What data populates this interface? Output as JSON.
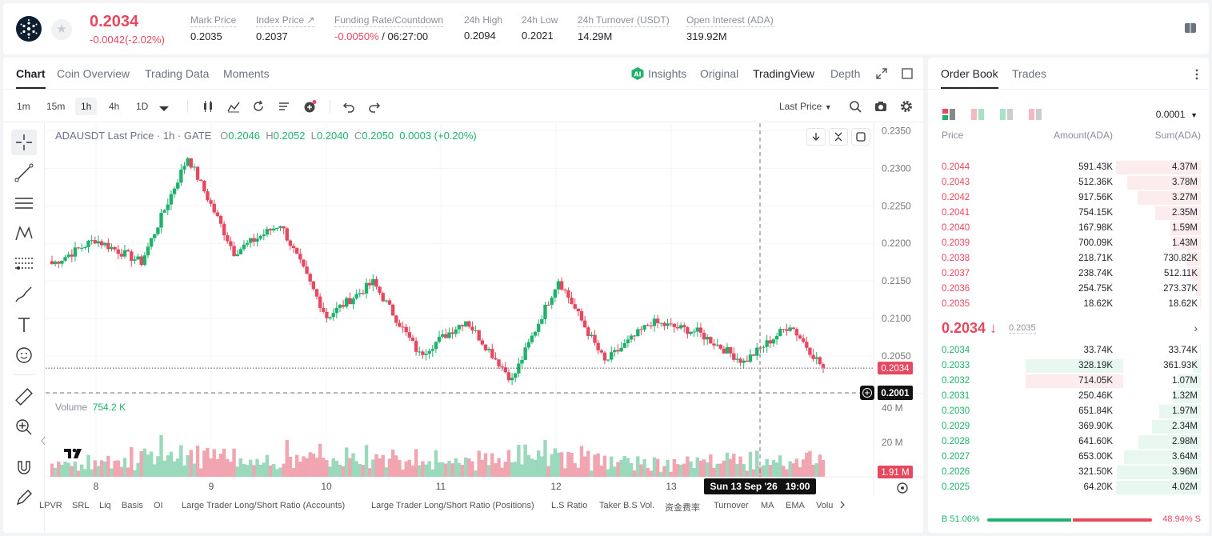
{
  "header": {
    "last_price": "0.2034",
    "price_change": "-0.0042(-2.02%)",
    "stats": [
      {
        "label": "Mark Price",
        "value": "0.2035"
      },
      {
        "label": "Index Price ↗",
        "value": "0.2037"
      },
      {
        "label": "Funding Rate/Countdown",
        "value_red": "-0.0050%",
        "value": " / 06:27:00"
      },
      {
        "label": "24h High",
        "value": "0.2094"
      },
      {
        "label": "24h Low",
        "value": "0.2021"
      },
      {
        "label": "24h Turnover (USDT)",
        "value": "14.29M"
      },
      {
        "label": "Open Interest (ADA)",
        "value": "319.92M"
      }
    ]
  },
  "chart_tabs": [
    "Chart",
    "Coin Overview",
    "Trading Data",
    "Moments"
  ],
  "view_tabs": {
    "insights": "Insights",
    "original": "Original",
    "tradingview": "TradingView",
    "depth": "Depth"
  },
  "timeframes": [
    "1m",
    "15m",
    "1h",
    "4h",
    "1D"
  ],
  "last_price_select": "Last Price",
  "legend": {
    "symbol": "ADAUSDT Last Price · 1h · GATE",
    "o": "0.2046",
    "h": "0.2052",
    "l": "0.2040",
    "c": "0.2050",
    "change": "0.0003 (+0.20%)"
  },
  "volume_legend": {
    "label": "Volume",
    "value": "754.2 K"
  },
  "price_axis": [
    "0.2350",
    "0.2300",
    "0.2250",
    "0.2200",
    "0.2150",
    "0.2100",
    "0.2050"
  ],
  "volume_axis": [
    "40 M",
    "20 M"
  ],
  "x_axis": [
    "8",
    "9",
    "10",
    "11",
    "12",
    "13"
  ],
  "price_tag": "0.2034",
  "cursor_tag": "0.2001",
  "volume_tag": "1.91 M",
  "cursor_time": "Sun 13 Sep '26   19:00",
  "bottom_indicators": [
    "LPVR",
    "SRL",
    "Liq",
    "Basis",
    "OI",
    "Large Trader Long/Short Ratio (Accounts)",
    "Large Trader Long/Short Ratio (Positions)",
    "L.S Ratio",
    "Taker B.S Vol.",
    "资金费率",
    "Turnover",
    "MA",
    "EMA",
    "Volu"
  ],
  "colors": {
    "up": "#20b26c",
    "down": "#e6485f"
  },
  "chart_data": {
    "type": "candlestick",
    "title": "ADAUSDT Last Price · 1h · GATE",
    "ylim": [
      0.2,
      0.236
    ],
    "x_ticks": [
      "8",
      "9",
      "10",
      "11",
      "12",
      "13"
    ],
    "segments": [
      {
        "day": "7",
        "start": 0.217,
        "end": 0.2205
      },
      {
        "day": "8",
        "start": 0.2205,
        "end": 0.2175
      },
      {
        "day": "8",
        "start": 0.2175,
        "end": 0.2315
      },
      {
        "day": "9",
        "start": 0.2315,
        "end": 0.2188
      },
      {
        "day": "9",
        "start": 0.2188,
        "end": 0.2226
      },
      {
        "day": "10",
        "start": 0.2226,
        "end": 0.2102
      },
      {
        "day": "10",
        "start": 0.2102,
        "end": 0.2148
      },
      {
        "day": "11",
        "start": 0.2148,
        "end": 0.2052
      },
      {
        "day": "11",
        "start": 0.2052,
        "end": 0.2098
      },
      {
        "day": "12",
        "start": 0.2098,
        "end": 0.2018
      },
      {
        "day": "12",
        "start": 0.2018,
        "end": 0.2152
      },
      {
        "day": "12",
        "start": 0.2152,
        "end": 0.2042
      },
      {
        "day": "12",
        "start": 0.2042,
        "end": 0.2095
      },
      {
        "day": "13",
        "start": 0.2095,
        "end": 0.2082
      },
      {
        "day": "13",
        "start": 0.2082,
        "end": 0.2042
      },
      {
        "day": "13",
        "start": 0.2042,
        "end": 0.2092
      },
      {
        "day": "13",
        "start": 0.2092,
        "end": 0.2034
      }
    ],
    "volume_ylim": [
      0,
      45
    ]
  },
  "order_book": {
    "tabs": [
      "Order Book",
      "Trades"
    ],
    "precision": "0.0001",
    "headers": {
      "price": "Price",
      "amount": "Amount(ADA)",
      "sum": "Sum(ADA)"
    },
    "asks": [
      {
        "price": "0.2044",
        "amount": "591.43K",
        "sum": "4.37M",
        "depth": 1.0
      },
      {
        "price": "0.2043",
        "amount": "512.36K",
        "sum": "3.78M",
        "depth": 0.87
      },
      {
        "price": "0.2042",
        "amount": "917.56K",
        "sum": "3.27M",
        "depth": 0.75
      },
      {
        "price": "0.2041",
        "amount": "754.15K",
        "sum": "2.35M",
        "depth": 0.54
      },
      {
        "price": "0.2040",
        "amount": "167.98K",
        "sum": "1.59M",
        "depth": 0.36
      },
      {
        "price": "0.2039",
        "amount": "700.09K",
        "sum": "1.43M",
        "depth": 0.33
      },
      {
        "price": "0.2038",
        "amount": "218.71K",
        "sum": "730.82K",
        "depth": 0.17
      },
      {
        "price": "0.2037",
        "amount": "238.74K",
        "sum": "512.11K",
        "depth": 0.12
      },
      {
        "price": "0.2036",
        "amount": "254.75K",
        "sum": "273.37K",
        "depth": 0.06
      },
      {
        "price": "0.2035",
        "amount": "18.62K",
        "sum": "18.62K",
        "depth": 0.01
      }
    ],
    "mid_price": "0.2034 ↓",
    "mid_mark": "0.2035",
    "bids": [
      {
        "price": "0.2034",
        "amount": "33.74K",
        "sum": "33.74K",
        "depth": 0.01
      },
      {
        "price": "0.2033",
        "amount": "328.19K",
        "sum": "361.93K",
        "depth": 0.09
      },
      {
        "price": "0.2032",
        "amount": "714.05K",
        "sum": "1.07M",
        "depth": 0.27
      },
      {
        "price": "0.2031",
        "amount": "250.46K",
        "sum": "1.32M",
        "depth": 0.33
      },
      {
        "price": "0.2030",
        "amount": "651.84K",
        "sum": "1.97M",
        "depth": 0.49
      },
      {
        "price": "0.2029",
        "amount": "369.90K",
        "sum": "2.34M",
        "depth": 0.58
      },
      {
        "price": "0.2028",
        "amount": "641.60K",
        "sum": "2.98M",
        "depth": 0.74
      },
      {
        "price": "0.2027",
        "amount": "653.00K",
        "sum": "3.64M",
        "depth": 0.91
      },
      {
        "price": "0.2026",
        "amount": "321.50K",
        "sum": "3.96M",
        "depth": 0.99
      },
      {
        "price": "0.2025",
        "amount": "64.20K",
        "sum": "4.02M",
        "depth": 1.0
      }
    ],
    "buy_ratio": "B 51.06%",
    "sell_ratio": "48.94% S",
    "buy_fraction": 0.5106
  }
}
